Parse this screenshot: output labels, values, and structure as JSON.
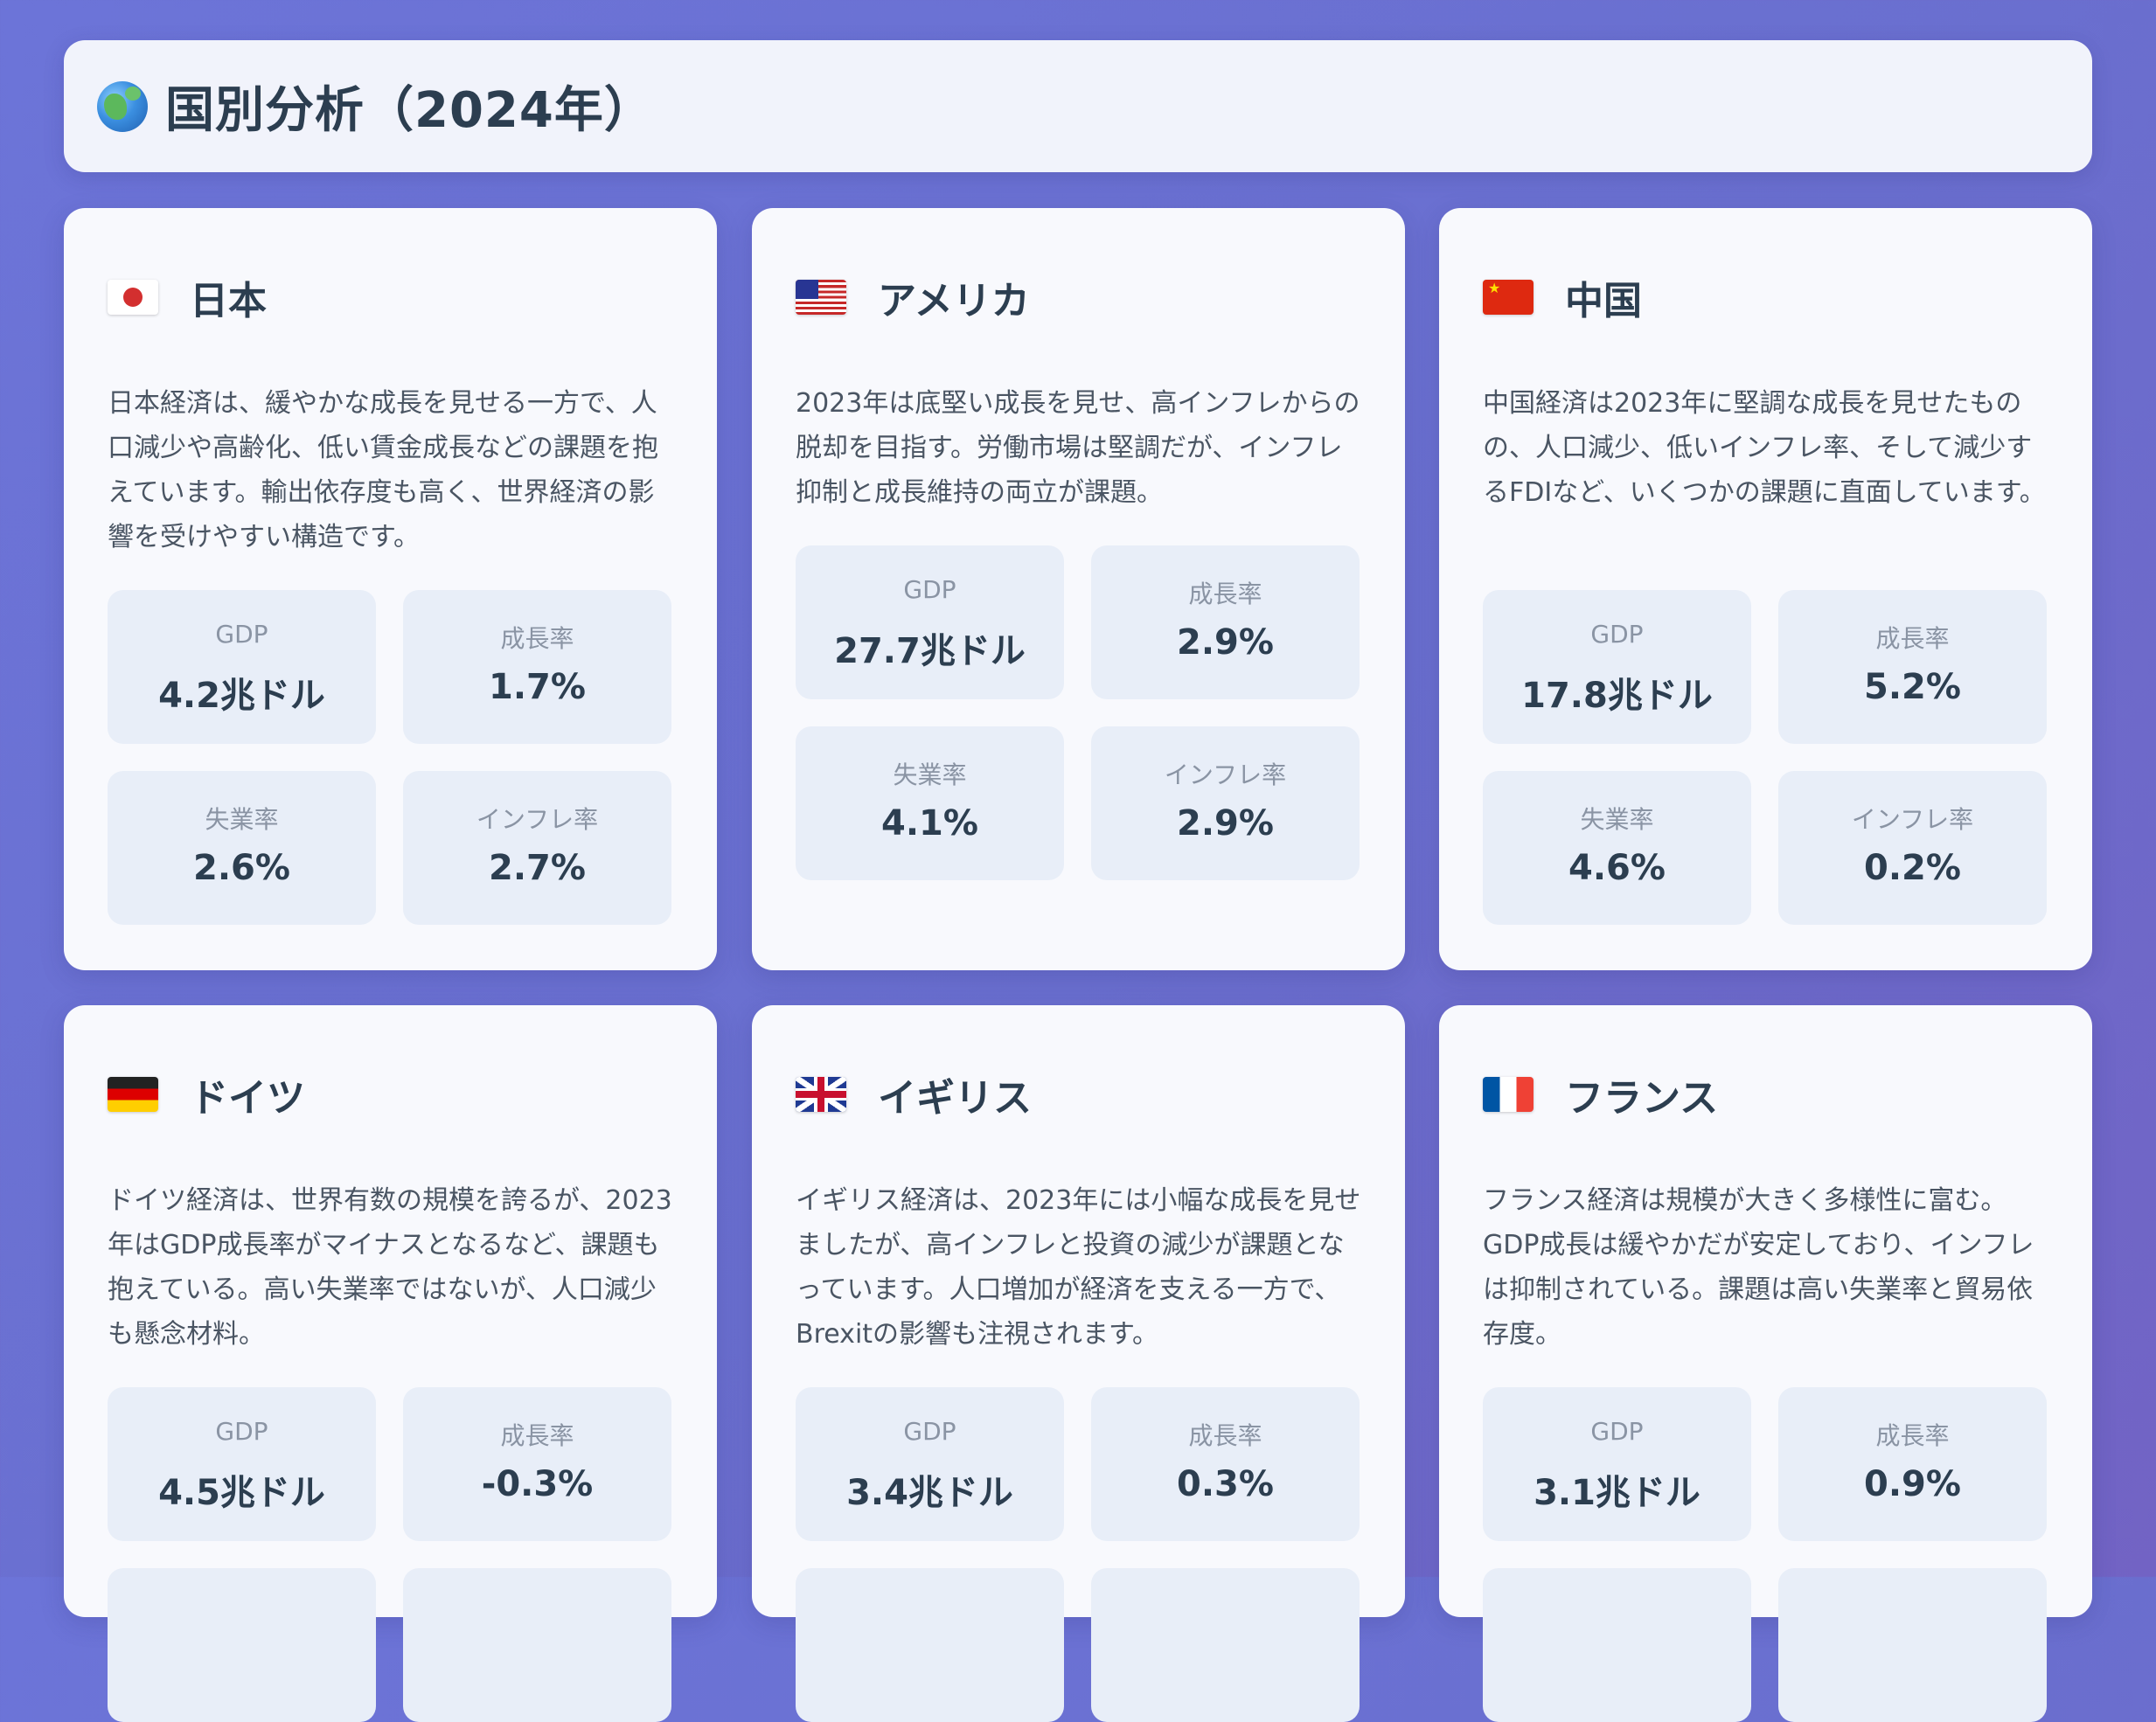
{
  "header": {
    "title": "国別分析（2024年）",
    "icon": "globe-icon"
  },
  "countries": [
    {
      "name": "日本",
      "flag": "japan-flag-icon",
      "description": "日本経済は、緩やかな成長を見せる一方で、人口減少や高齢化、低い賃金成長などの課題を抱えています。輸出依存度も高く、世界経済の影響を受けやすい構造です。",
      "metrics": [
        {
          "label": "GDP",
          "value": "4.2兆ドル"
        },
        {
          "label": "成長率",
          "value": "1.7%"
        },
        {
          "label": "失業率",
          "value": "2.6%"
        },
        {
          "label": "インフレ率",
          "value": "2.7%"
        }
      ]
    },
    {
      "name": "アメリカ",
      "flag": "usa-flag-icon",
      "description": "2023年は底堅い成長を見せ、高インフレからの脱却を目指す。労働市場は堅調だが、インフレ抑制と成長維持の両立が課題。",
      "metrics": [
        {
          "label": "GDP",
          "value": "27.7兆ドル"
        },
        {
          "label": "成長率",
          "value": "2.9%"
        },
        {
          "label": "失業率",
          "value": "4.1%"
        },
        {
          "label": "インフレ率",
          "value": "2.9%"
        }
      ]
    },
    {
      "name": "中国",
      "flag": "china-flag-icon",
      "description": "中国経済は2023年に堅調な成長を見せたものの、人口減少、低いインフレ率、そして減少するFDIなど、いくつかの課題に直面しています。",
      "metrics": [
        {
          "label": "GDP",
          "value": "17.8兆ドル"
        },
        {
          "label": "成長率",
          "value": "5.2%"
        },
        {
          "label": "失業率",
          "value": "4.6%"
        },
        {
          "label": "インフレ率",
          "value": "0.2%"
        }
      ]
    },
    {
      "name": "ドイツ",
      "flag": "germany-flag-icon",
      "description": "ドイツ経済は、世界有数の規模を誇るが、2023年はGDP成長率がマイナスとなるなど、課題も抱えている。高い失業率ではないが、人口減少も懸念材料。",
      "metrics": [
        {
          "label": "GDP",
          "value": "4.5兆ドル"
        },
        {
          "label": "成長率",
          "value": "-0.3%"
        }
      ]
    },
    {
      "name": "イギリス",
      "flag": "uk-flag-icon",
      "description": "イギリス経済は、2023年には小幅な成長を見せましたが、高インフレと投資の減少が課題となっています。人口増加が経済を支える一方で、Brexitの影響も注視されます。",
      "metrics": [
        {
          "label": "GDP",
          "value": "3.4兆ドル"
        },
        {
          "label": "成長率",
          "value": "0.3%"
        }
      ]
    },
    {
      "name": "フランス",
      "flag": "france-flag-icon",
      "description": "フランス経済は規模が大きく多様性に富む。GDP成長は緩やかだが安定しており、インフレは抑制されている。課題は高い失業率と貿易依存度。",
      "metrics": [
        {
          "label": "GDP",
          "value": "3.1兆ドル"
        },
        {
          "label": "成長率",
          "value": "0.9%"
        }
      ]
    }
  ]
}
